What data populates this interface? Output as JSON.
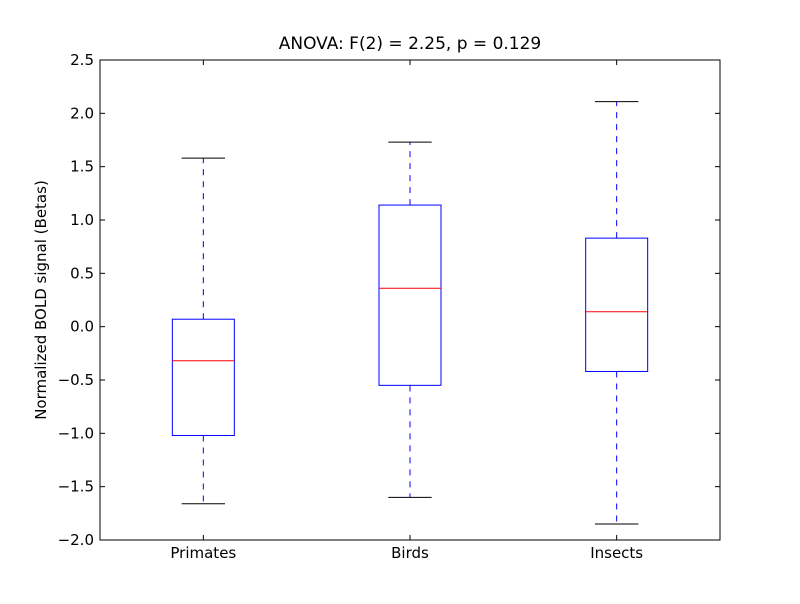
{
  "chart_data": {
    "type": "box",
    "title": "ANOVA: F(2) = 2.25, p = 0.129",
    "xlabel": "",
    "ylabel": "Normalized BOLD signal (Betas)",
    "ylim": [
      -2.0,
      2.5
    ],
    "yticks": [
      -2.0,
      -1.5,
      -1.0,
      -0.5,
      0.0,
      0.5,
      1.0,
      1.5,
      2.0,
      2.5
    ],
    "ytick_labels": [
      "−2.0",
      "−1.5",
      "−1.0",
      "−0.5",
      "0.0",
      "0.5",
      "1.0",
      "1.5",
      "2.0",
      "2.5"
    ],
    "categories": [
      "Primates",
      "Birds",
      "Insects"
    ],
    "grid": false,
    "boxes": [
      {
        "whisker_low": -1.66,
        "q1": -1.02,
        "median": -0.32,
        "q3": 0.07,
        "whisker_high": 1.58
      },
      {
        "whisker_low": -1.6,
        "q1": -0.55,
        "median": 0.36,
        "q3": 1.14,
        "whisker_high": 1.73
      },
      {
        "whisker_low": -1.85,
        "q1": -0.42,
        "median": 0.14,
        "q3": 0.83,
        "whisker_high": 2.11
      }
    ],
    "colors": {
      "box": "#0000ff",
      "median": "#ff0000",
      "whisker": "#0000ff",
      "cap": "#000000"
    }
  }
}
